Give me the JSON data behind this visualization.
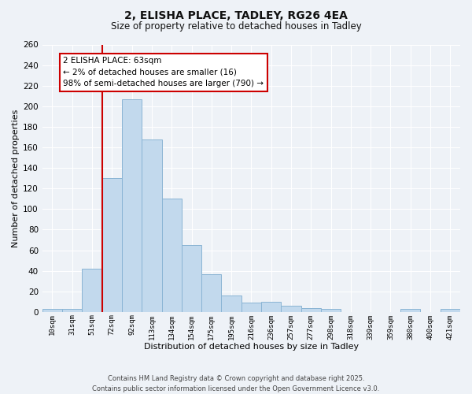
{
  "title_line1": "2, ELISHA PLACE, TADLEY, RG26 4EA",
  "title_line2": "Size of property relative to detached houses in Tadley",
  "xlabel": "Distribution of detached houses by size in Tadley",
  "ylabel": "Number of detached properties",
  "categories": [
    "10sqm",
    "31sqm",
    "51sqm",
    "72sqm",
    "92sqm",
    "113sqm",
    "134sqm",
    "154sqm",
    "175sqm",
    "195sqm",
    "216sqm",
    "236sqm",
    "257sqm",
    "277sqm",
    "298sqm",
    "318sqm",
    "339sqm",
    "359sqm",
    "380sqm",
    "400sqm",
    "421sqm"
  ],
  "values": [
    3,
    3,
    42,
    130,
    207,
    168,
    110,
    65,
    37,
    16,
    9,
    10,
    6,
    4,
    3,
    0,
    0,
    0,
    3,
    0,
    3
  ],
  "bar_color": "#c2d9ed",
  "bar_edge_color": "#8ab4d4",
  "vline_color": "#cc0000",
  "annotation_text": "2 ELISHA PLACE: 63sqm\n← 2% of detached houses are smaller (16)\n98% of semi-detached houses are larger (790) →",
  "annotation_box_color": "#ffffff",
  "annotation_box_edge": "#cc0000",
  "ylim": [
    0,
    260
  ],
  "yticks": [
    0,
    20,
    40,
    60,
    80,
    100,
    120,
    140,
    160,
    180,
    200,
    220,
    240,
    260
  ],
  "background_color": "#eef2f7",
  "grid_color": "#ffffff",
  "footer_line1": "Contains HM Land Registry data © Crown copyright and database right 2025.",
  "footer_line2": "Contains public sector information licensed under the Open Government Licence v3.0."
}
